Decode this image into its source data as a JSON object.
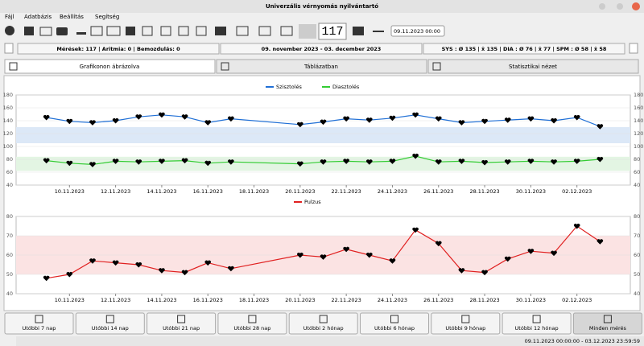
{
  "window": {
    "title": "Univerzális vérnyomás nyilvántartó"
  },
  "menu": [
    "Fájl",
    "Adatbázis",
    "Beállítás",
    "Segítség"
  ],
  "toolbar": {
    "counter": "117",
    "datetime": "09.11.2023 00:00"
  },
  "status": {
    "counts": "Mérések: 117 | Aritmia: 0 | Bemozdulás: 0",
    "range": "09. november 2023 - 03. december 2023",
    "averages": "SYS : Ø 135 | x̄ 135 | DIA : Ø 76 | x̄ 77 | SPM : Ø 58 | x̄ 58"
  },
  "tabs": [
    "Grafikonon ábrázolva",
    "Táblázatban",
    "Statisztikai nézet"
  ],
  "chart_data": [
    {
      "type": "line",
      "marker_color": "#000000",
      "x": [
        "2023-11-09",
        "2023-11-10",
        "2023-11-11",
        "2023-11-12",
        "2023-11-13",
        "2023-11-14",
        "2023-11-15",
        "2023-11-16",
        "2023-11-17",
        "2023-11-20",
        "2023-11-21",
        "2023-11-22",
        "2023-11-23",
        "2023-11-24",
        "2023-11-25",
        "2023-11-26",
        "2023-11-27",
        "2023-11-28",
        "2023-11-29",
        "2023-11-30",
        "2023-12-01",
        "2023-12-02",
        "2023-12-03"
      ],
      "series": [
        {
          "name": "Szisztolés",
          "color": "#1f6fd6",
          "values": [
            145,
            139,
            137,
            140,
            146,
            149,
            146,
            137,
            143,
            134,
            138,
            143,
            141,
            144,
            149,
            143,
            137,
            139,
            141,
            143,
            140,
            145,
            131
          ]
        },
        {
          "name": "Diasztolés",
          "color": "#33cc33",
          "values": [
            78,
            74,
            72,
            77,
            76,
            77,
            78,
            74,
            76,
            73,
            76,
            77,
            76,
            77,
            85,
            76,
            77,
            75,
            76,
            77,
            76,
            77,
            80
          ]
        }
      ],
      "bands": [
        {
          "from": 105,
          "to": 130,
          "color": "#dce8f7"
        },
        {
          "from": 62,
          "to": 84,
          "color": "#e3f5e3"
        }
      ],
      "xlim": [
        "2023-11-08",
        "2023-12-04"
      ],
      "xticks": [
        {
          "value": "2023-11-10",
          "label": "10.11.2023"
        },
        {
          "value": "2023-11-12",
          "label": "12.11.2023"
        },
        {
          "value": "2023-11-14",
          "label": "14.11.2023"
        },
        {
          "value": "2023-11-16",
          "label": "16.11.2023"
        },
        {
          "value": "2023-11-18",
          "label": "18.11.2023"
        },
        {
          "value": "2023-11-20",
          "label": "20.11.2023"
        },
        {
          "value": "2023-11-22",
          "label": "22.11.2023"
        },
        {
          "value": "2023-11-24",
          "label": "24.11.2023"
        },
        {
          "value": "2023-11-26",
          "label": "26.11.2023"
        },
        {
          "value": "2023-11-28",
          "label": "28.11.2023"
        },
        {
          "value": "2023-11-30",
          "label": "30.11.2023"
        },
        {
          "value": "2023-12-02",
          "label": "02.12.2023"
        }
      ],
      "ylim": [
        40,
        180
      ],
      "yticks": [
        40,
        60,
        80,
        100,
        120,
        140,
        160,
        180
      ],
      "grid": true
    },
    {
      "type": "line",
      "marker_color": "#000000",
      "x": [
        "2023-11-09",
        "2023-11-10",
        "2023-11-11",
        "2023-11-12",
        "2023-11-13",
        "2023-11-14",
        "2023-11-15",
        "2023-11-16",
        "2023-11-17",
        "2023-11-20",
        "2023-11-21",
        "2023-11-22",
        "2023-11-23",
        "2023-11-24",
        "2023-11-25",
        "2023-11-26",
        "2023-11-27",
        "2023-11-28",
        "2023-11-29",
        "2023-11-30",
        "2023-12-01",
        "2023-12-02",
        "2023-12-03"
      ],
      "series": [
        {
          "name": "Pulzus",
          "color": "#e02020",
          "values": [
            48,
            50,
            57,
            56,
            55,
            52,
            51,
            56,
            53,
            60,
            59,
            63,
            60,
            57,
            73,
            66,
            52,
            51,
            58,
            62,
            61,
            75,
            67
          ]
        }
      ],
      "bands": [
        {
          "from": 50,
          "to": 70,
          "color": "#fbe3e3"
        }
      ],
      "xlim": [
        "2023-11-08",
        "2023-12-04"
      ],
      "xticks": [
        {
          "value": "2023-11-10",
          "label": "10.11.2023"
        },
        {
          "value": "2023-11-12",
          "label": "12.11.2023"
        },
        {
          "value": "2023-11-14",
          "label": "14.11.2023"
        },
        {
          "value": "2023-11-16",
          "label": "16.11.2023"
        },
        {
          "value": "2023-11-18",
          "label": "18.11.2023"
        },
        {
          "value": "2023-11-20",
          "label": "20.11.2023"
        },
        {
          "value": "2023-11-22",
          "label": "22.11.2023"
        },
        {
          "value": "2023-11-24",
          "label": "24.11.2023"
        },
        {
          "value": "2023-11-26",
          "label": "26.11.2023"
        },
        {
          "value": "2023-11-28",
          "label": "28.11.2023"
        },
        {
          "value": "2023-11-30",
          "label": "30.11.2023"
        },
        {
          "value": "2023-12-02",
          "label": "02.12.2023"
        }
      ],
      "ylim": [
        40,
        80
      ],
      "yticks": [
        40,
        50,
        60,
        70,
        80
      ],
      "grid": true
    }
  ],
  "buttons": [
    "Utóbbi 7 nap",
    "Utóbbi 14 nap",
    "Utóbbi 21 nap",
    "Utóbbi 28 nap",
    "Utóbbi 2 hónap",
    "Utóbbi 6 hónap",
    "Utóbbi 9 hónap",
    "Utóbbi 12 hónap",
    "Minden mérés"
  ],
  "footer": "09.11.2023 00:00:00 - 03.12.2023 23:59:59"
}
